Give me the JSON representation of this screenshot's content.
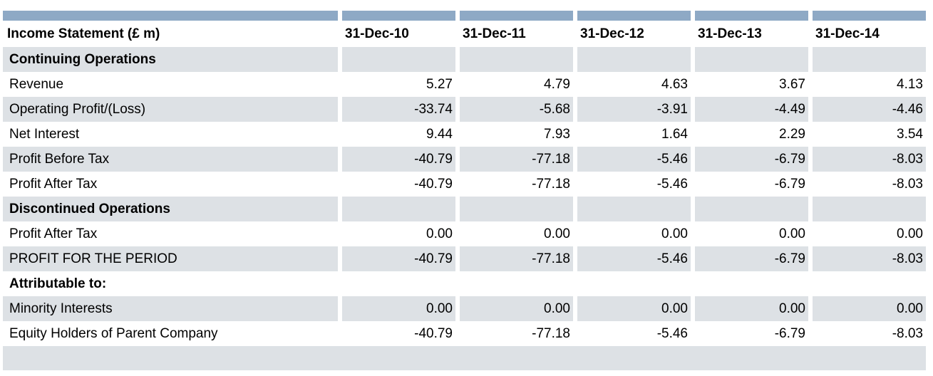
{
  "colors": {
    "header_bar": "#8ea9c5",
    "shaded_row": "#dde1e5",
    "plain_row": "#ffffff"
  },
  "table": {
    "title": "Income Statement  (£ m)",
    "columns": [
      "31-Dec-10",
      "31-Dec-11",
      "31-Dec-12",
      "31-Dec-13",
      "31-Dec-14"
    ],
    "rows": [
      {
        "label": "Continuing Operations",
        "type": "section",
        "values": [
          "",
          "",
          "",
          "",
          ""
        ]
      },
      {
        "label": "Revenue",
        "type": "plain",
        "values": [
          "5.27",
          "4.79",
          "4.63",
          "3.67",
          "4.13"
        ]
      },
      {
        "label": "Operating Profit/(Loss)",
        "type": "shaded",
        "values": [
          "-33.74",
          "-5.68",
          "-3.91",
          "-4.49",
          "-4.46"
        ]
      },
      {
        "label": "Net Interest",
        "type": "plain",
        "values": [
          "9.44",
          "7.93",
          "1.64",
          "2.29",
          "3.54"
        ]
      },
      {
        "label": "Profit Before Tax",
        "type": "shaded",
        "values": [
          "-40.79",
          "-77.18",
          "-5.46",
          "-6.79",
          "-8.03"
        ]
      },
      {
        "label": "Profit After Tax",
        "type": "plain",
        "values": [
          "-40.79",
          "-77.18",
          "-5.46",
          "-6.79",
          "-8.03"
        ]
      },
      {
        "label": "Discontinued Operations",
        "type": "section",
        "values": [
          "",
          "",
          "",
          "",
          ""
        ]
      },
      {
        "label": "Profit After Tax",
        "type": "plain",
        "values": [
          "0.00",
          "0.00",
          "0.00",
          "0.00",
          "0.00"
        ]
      },
      {
        "label": "PROFIT FOR THE PERIOD",
        "type": "shaded",
        "values": [
          "-40.79",
          "-77.18",
          "-5.46",
          "-6.79",
          "-8.03"
        ]
      },
      {
        "label": "Attributable to:",
        "type": "plain-bold",
        "values": [
          "",
          "",
          "",
          "",
          ""
        ]
      },
      {
        "label": "Minority Interests",
        "type": "shaded",
        "values": [
          "0.00",
          "0.00",
          "0.00",
          "0.00",
          "0.00"
        ]
      },
      {
        "label": "Equity Holders of Parent Company",
        "type": "plain",
        "values": [
          "-40.79",
          "-77.18",
          "-5.46",
          "-6.79",
          "-8.03"
        ]
      }
    ]
  }
}
